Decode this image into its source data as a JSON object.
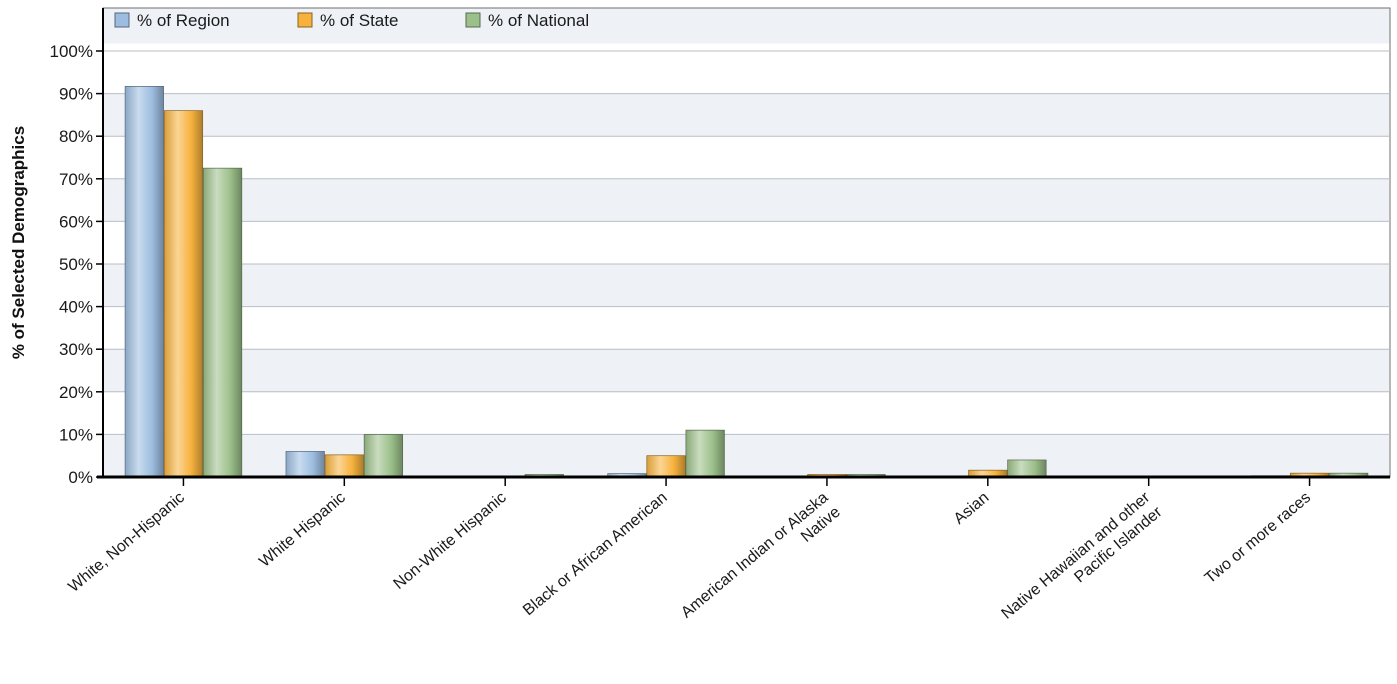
{
  "chart_data": {
    "type": "bar",
    "title": "",
    "xlabel": "",
    "ylabel": "% of Selected Demographics",
    "ylim": [
      0,
      100
    ],
    "yticks": [
      "0%",
      "10%",
      "20%",
      "30%",
      "40%",
      "50%",
      "60%",
      "70%",
      "80%",
      "90%",
      "100%"
    ],
    "grid": true,
    "legend_position": "top-left",
    "categories": [
      [
        "White, Non-Hispanic"
      ],
      [
        "White Hispanic"
      ],
      [
        "Non-White Hispanic"
      ],
      [
        "Black or African American"
      ],
      [
        "American Indian or Alaska",
        "Native"
      ],
      [
        "Asian"
      ],
      [
        "Native Hawaiian and other",
        "Pacific Islander"
      ],
      [
        "Two or more races"
      ]
    ],
    "series": [
      {
        "name": "% of Region",
        "color": "#9dbde0",
        "values": [
          91.7,
          6.0,
          0.0,
          0.8,
          0.0,
          0.0,
          0.0,
          0.3
        ]
      },
      {
        "name": "% of State",
        "color": "#f7b23e",
        "values": [
          86.0,
          5.2,
          0.0,
          5.0,
          0.6,
          1.6,
          0.0,
          0.9
        ]
      },
      {
        "name": "% of National",
        "color": "#9cc08a",
        "values": [
          72.5,
          10.0,
          0.6,
          11.0,
          0.6,
          4.0,
          0.0,
          0.9
        ]
      }
    ]
  }
}
